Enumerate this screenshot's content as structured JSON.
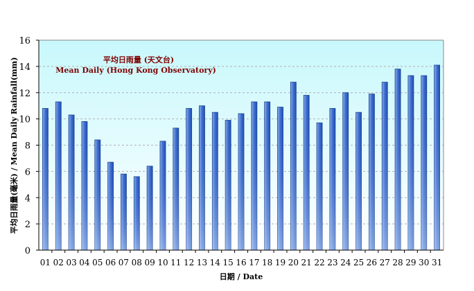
{
  "chart_data": {
    "type": "bar",
    "title": "平均日雨量 (天文台)",
    "subtitle": "Mean Daily (Hong Kong Observatory)",
    "xlabel": "日期 / Date",
    "ylabel": "平均日雨量(毫米) / Mean Daily Rainfall(mm)",
    "ylim": [
      0,
      16
    ],
    "yticks": [
      0,
      2,
      4,
      6,
      8,
      10,
      12,
      14,
      16
    ],
    "grid": true,
    "categories": [
      "01",
      "02",
      "03",
      "04",
      "05",
      "06",
      "07",
      "08",
      "09",
      "10",
      "11",
      "12",
      "13",
      "14",
      "15",
      "16",
      "17",
      "18",
      "19",
      "20",
      "21",
      "22",
      "23",
      "24",
      "25",
      "26",
      "27",
      "28",
      "29",
      "30",
      "31"
    ],
    "values": [
      10.8,
      11.3,
      10.3,
      9.8,
      8.4,
      6.7,
      5.8,
      5.6,
      6.4,
      8.3,
      9.3,
      10.8,
      11.0,
      10.5,
      9.9,
      10.4,
      11.3,
      11.3,
      10.9,
      12.8,
      11.8,
      9.7,
      10.8,
      12.0,
      10.5,
      11.9,
      12.8,
      13.8,
      13.3,
      13.3,
      14.1
    ],
    "colors": {
      "plot_bg_top": "#c8f8fc",
      "plot_bg_bottom": "#ffffff",
      "bar_dark": "#1f4fb4",
      "bar_light": "#8fb3ea",
      "annotation": "#800000",
      "grid": "#b0b0b0"
    }
  }
}
